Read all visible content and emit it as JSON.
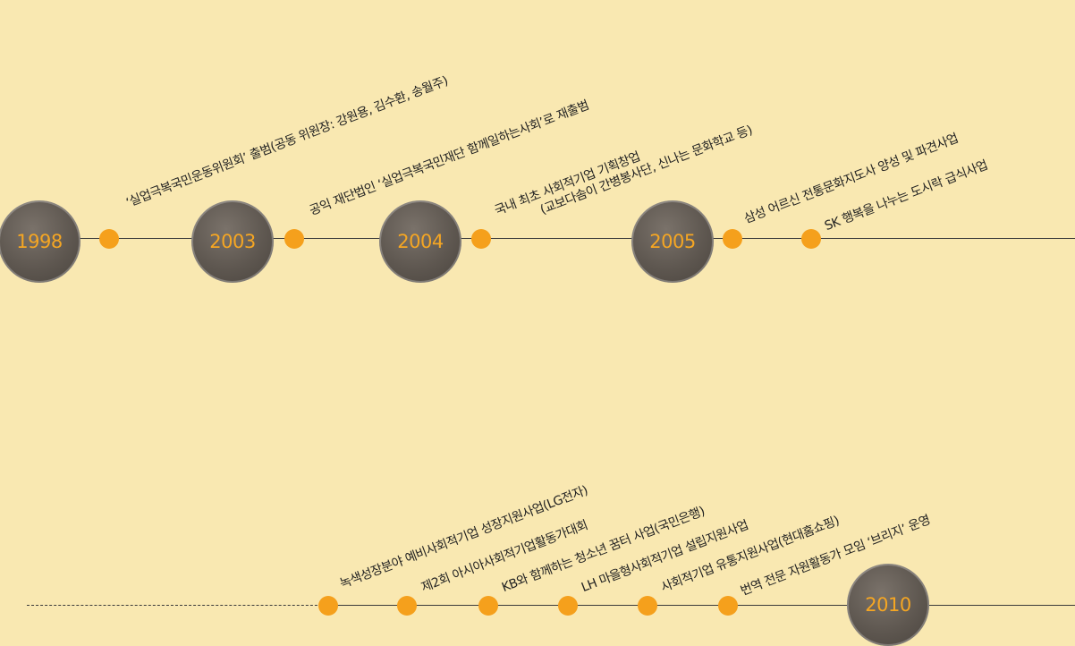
{
  "timeline_top": {
    "years": [
      "1998",
      "2003",
      "2004",
      "2005"
    ],
    "events": [
      "‘실업극복국민운동위원회’ 출범(공동 위원장: 강원용, 김수환, 송월주)",
      "공익 재단법인 ‘실업극복국민재단 함께일하는사회’로 재출범",
      "국내 최초 사회적기업 기획창업",
      "(교보다솜이 간병봉사단, 신나는 문화학교 등)",
      "삼성 어르신 전통문화지도사 양성 및 파견사업",
      "SK 행복을 나누는 도시락 급식사업"
    ]
  },
  "timeline_bottom": {
    "years": [
      "2010"
    ],
    "events": [
      "녹색성장분야 예비사회적기업 성장지원사업(LG전자)",
      "제2회 아시아사회적기업활동가대회",
      "KB와 함께하는 청소년 꿈터 사업(국민은행)",
      "LH 마을형사회적기업 설립지원사업",
      "사회적기업 유통지원사업(현대홈쇼핑)",
      "번역 전문 자원활동가 모임 ‘브리지’ 운영"
    ]
  },
  "colors": {
    "background": "#f9e8b1",
    "accent": "#f5a01c",
    "year_circle": "#5e5750",
    "line": "#3a3a3a"
  }
}
